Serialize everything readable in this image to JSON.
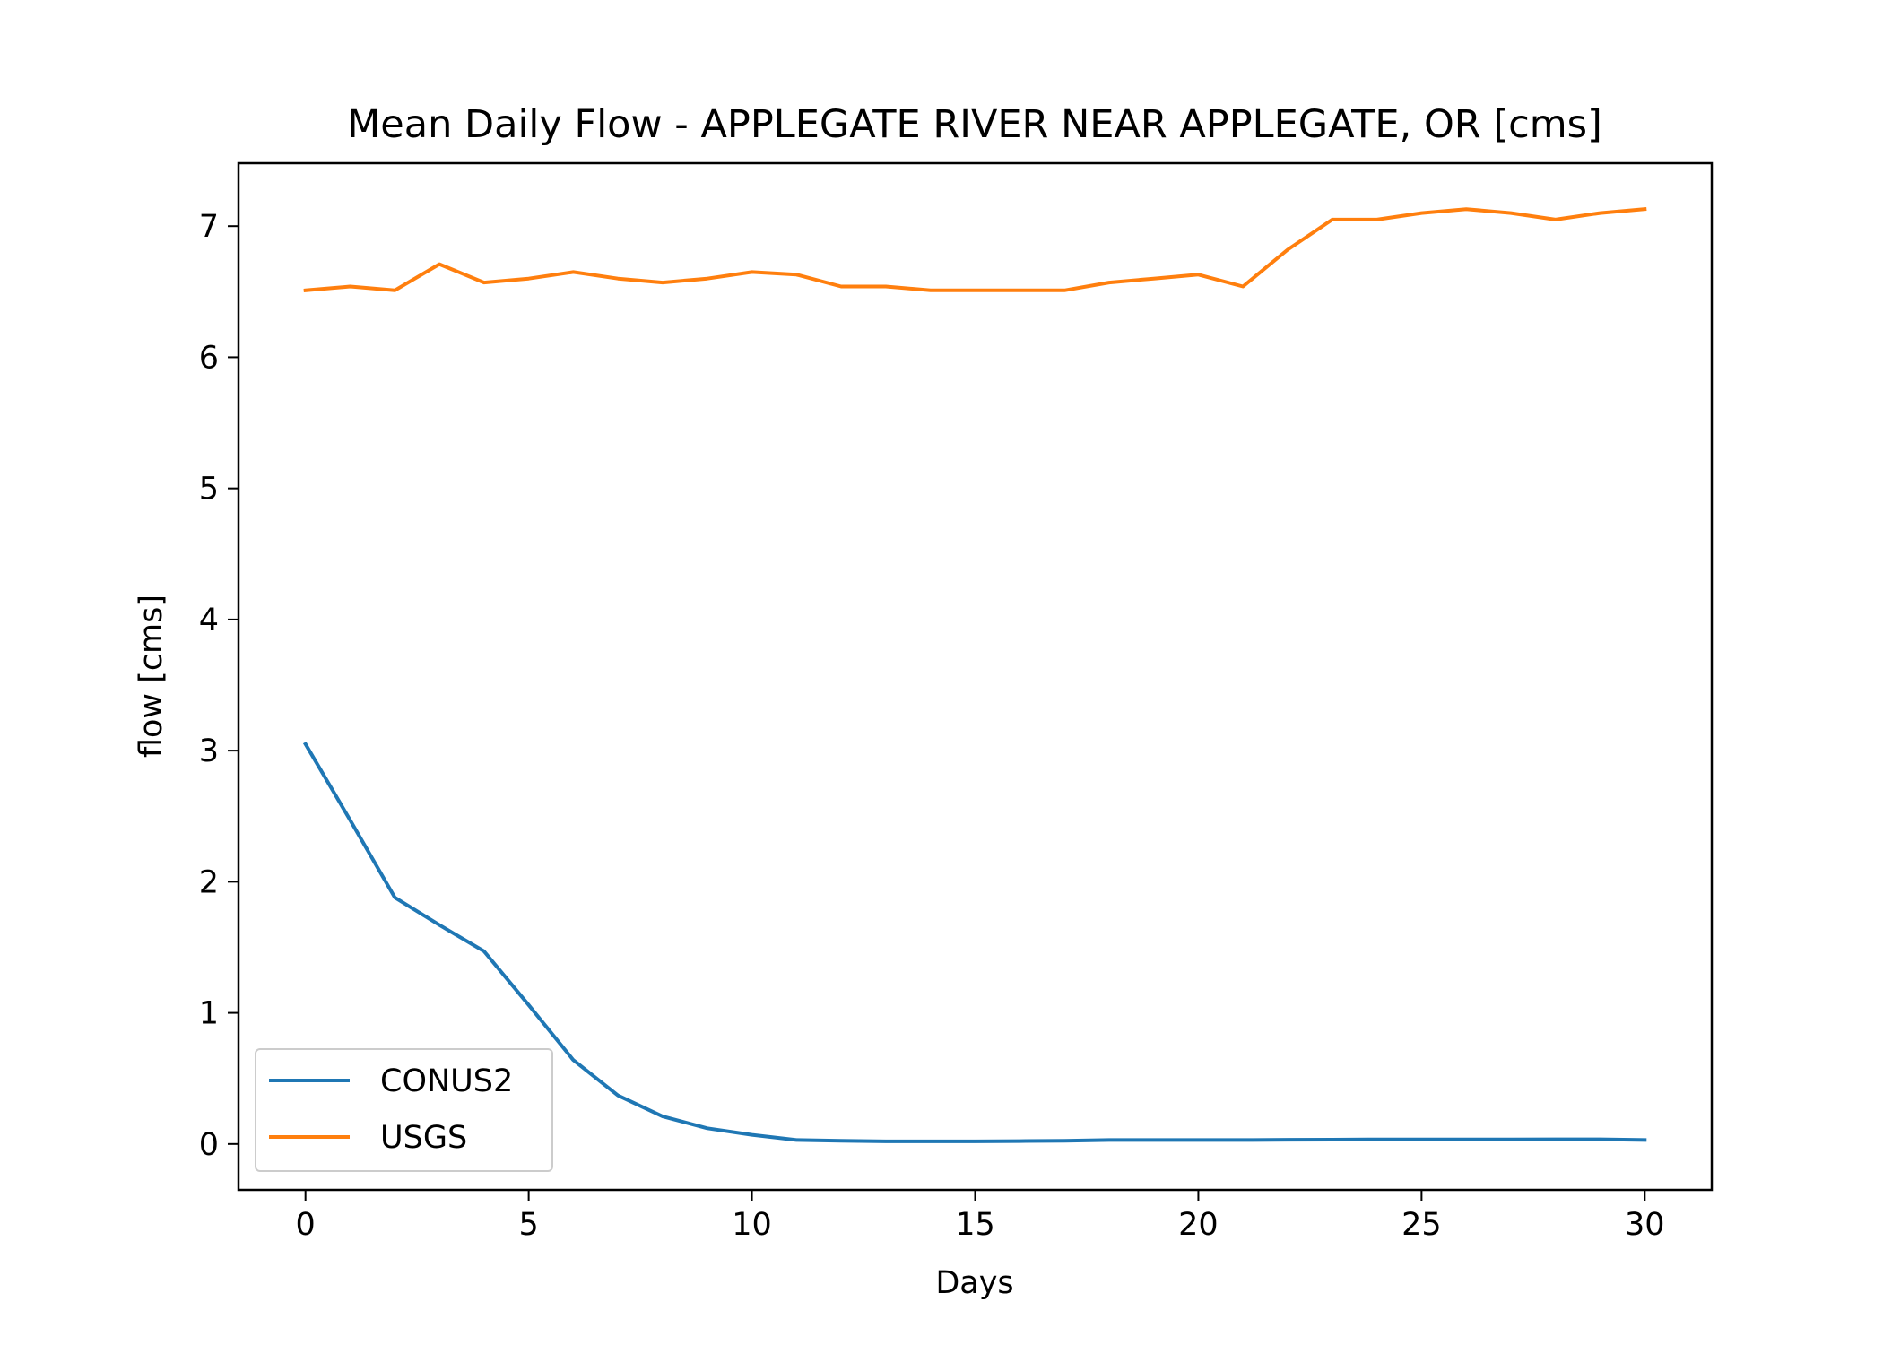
{
  "chart_data": {
    "type": "line",
    "title": "Mean Daily Flow - APPLEGATE RIVER NEAR APPLEGATE, OR [cms]",
    "xlabel": "Days",
    "ylabel": "flow [cms]",
    "xlim": [
      -1.5,
      31.5
    ],
    "ylim": [
      -0.35,
      7.48
    ],
    "xticks": [
      0,
      5,
      10,
      15,
      20,
      25,
      30
    ],
    "yticks": [
      0,
      1,
      2,
      3,
      4,
      5,
      6,
      7
    ],
    "grid": false,
    "legend": {
      "position": "lower-left"
    },
    "x": [
      0,
      1,
      2,
      3,
      4,
      5,
      6,
      7,
      8,
      9,
      10,
      11,
      12,
      13,
      14,
      15,
      16,
      17,
      18,
      19,
      20,
      21,
      22,
      23,
      24,
      25,
      26,
      27,
      28,
      29,
      30
    ],
    "series": [
      {
        "name": "CONUS2",
        "color": "#1f77b4",
        "values": [
          3.05,
          2.47,
          1.88,
          1.67,
          1.47,
          1.06,
          0.64,
          0.37,
          0.21,
          0.12,
          0.07,
          0.03,
          0.025,
          0.02,
          0.02,
          0.02,
          0.022,
          0.025,
          0.03,
          0.03,
          0.03,
          0.03,
          0.032,
          0.033,
          0.035,
          0.035,
          0.035,
          0.035,
          0.036,
          0.036,
          0.03
        ]
      },
      {
        "name": "USGS",
        "color": "#ff7f0e",
        "values": [
          6.51,
          6.54,
          6.51,
          6.71,
          6.57,
          6.6,
          6.65,
          6.6,
          6.57,
          6.6,
          6.65,
          6.63,
          6.54,
          6.54,
          6.51,
          6.51,
          6.51,
          6.51,
          6.57,
          6.6,
          6.63,
          6.54,
          6.82,
          7.05,
          7.05,
          7.1,
          7.13,
          7.1,
          7.05,
          7.1,
          7.13
        ]
      }
    ]
  }
}
